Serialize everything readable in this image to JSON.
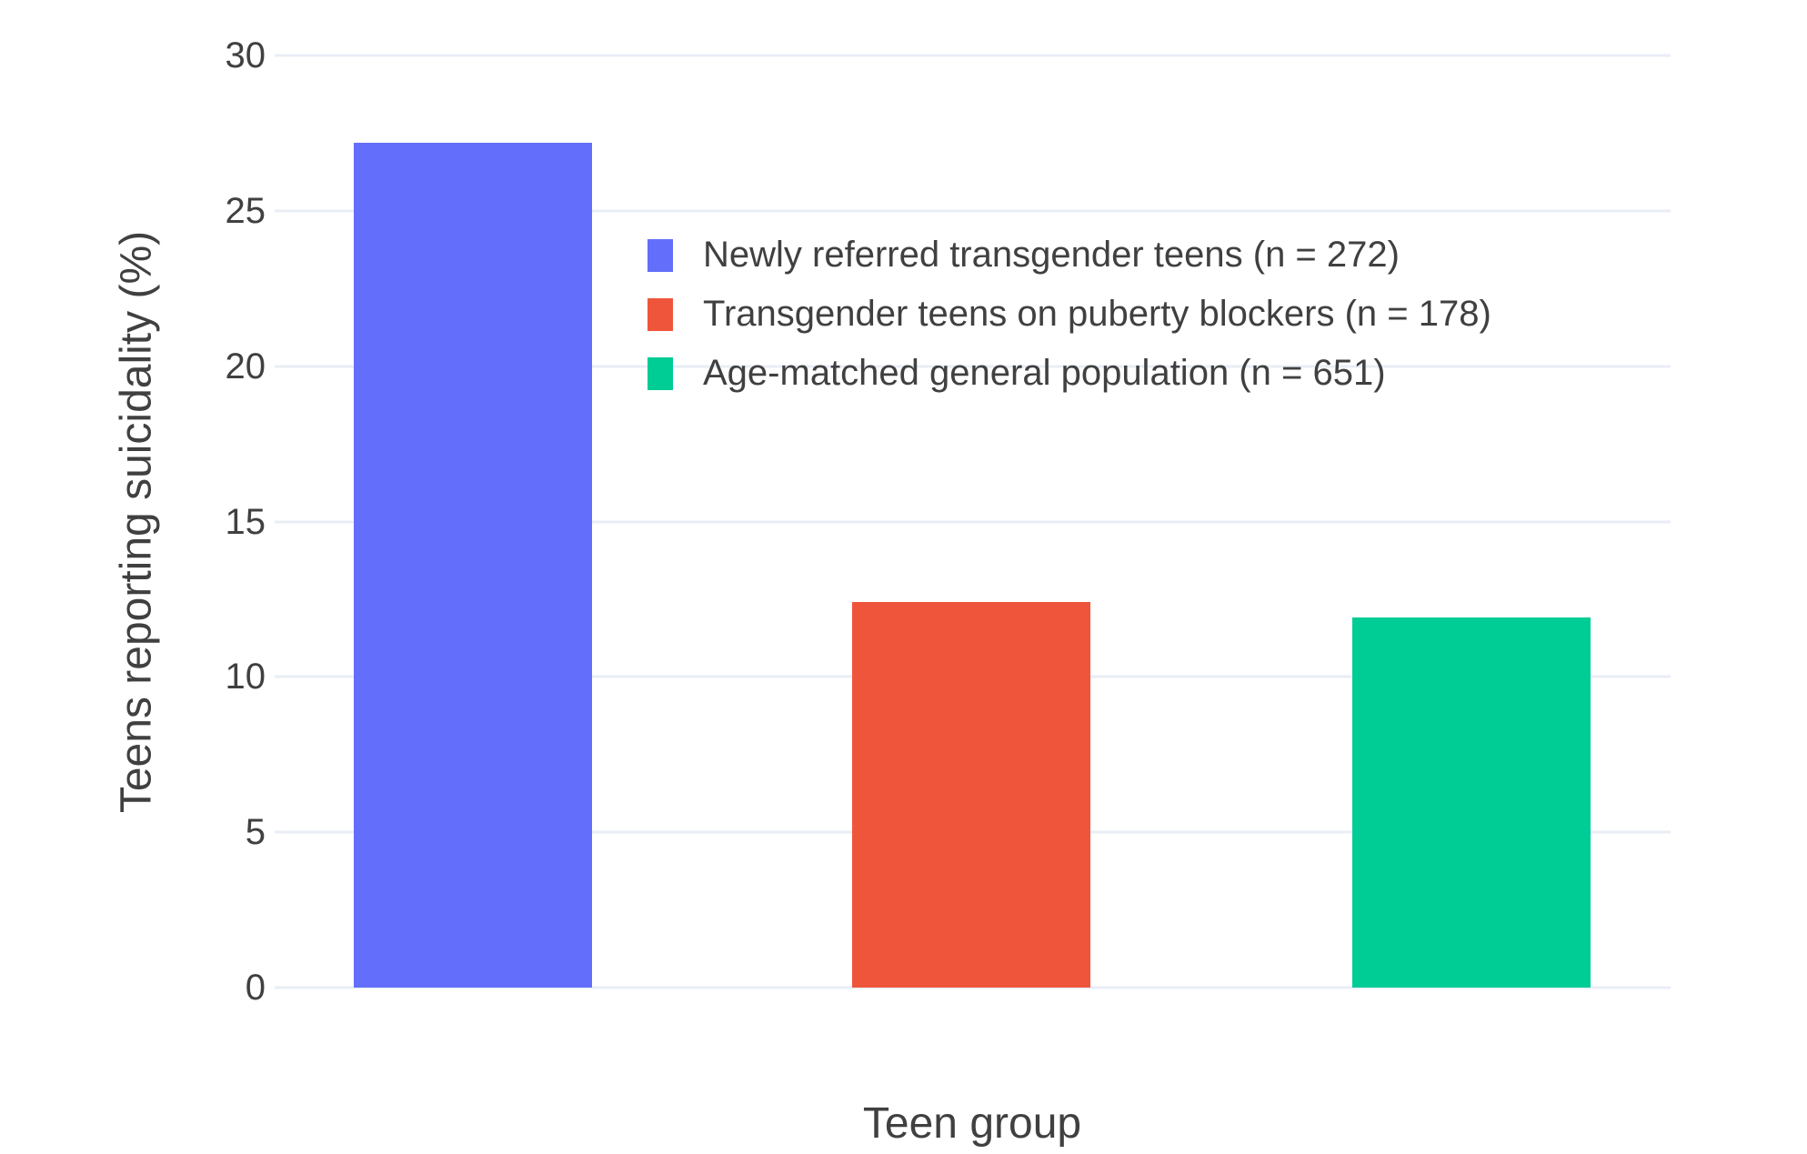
{
  "figure": {
    "background": "#ffffff",
    "text_color": "#404040",
    "grid_color": "#E9EEF6"
  },
  "chart_data": {
    "type": "bar",
    "title": "",
    "xlabel": "Teen group",
    "ylabel": "Teens reporting suicidality (%)",
    "ylim": [
      0,
      30
    ],
    "yticks": [
      0,
      5,
      10,
      15,
      20,
      25,
      30
    ],
    "grid": true,
    "legend_position": "inside-top-center",
    "series": [
      {
        "name": "Newly referred transgender teens (n = 272)",
        "value": 27.2,
        "color": "#636EFA"
      },
      {
        "name": "Transgender teens on puberty blockers (n = 178)",
        "value": 12.4,
        "color": "#EF553B"
      },
      {
        "name": "Age-matched general population (n = 651)",
        "value": 11.9,
        "color": "#00CC96"
      }
    ]
  }
}
